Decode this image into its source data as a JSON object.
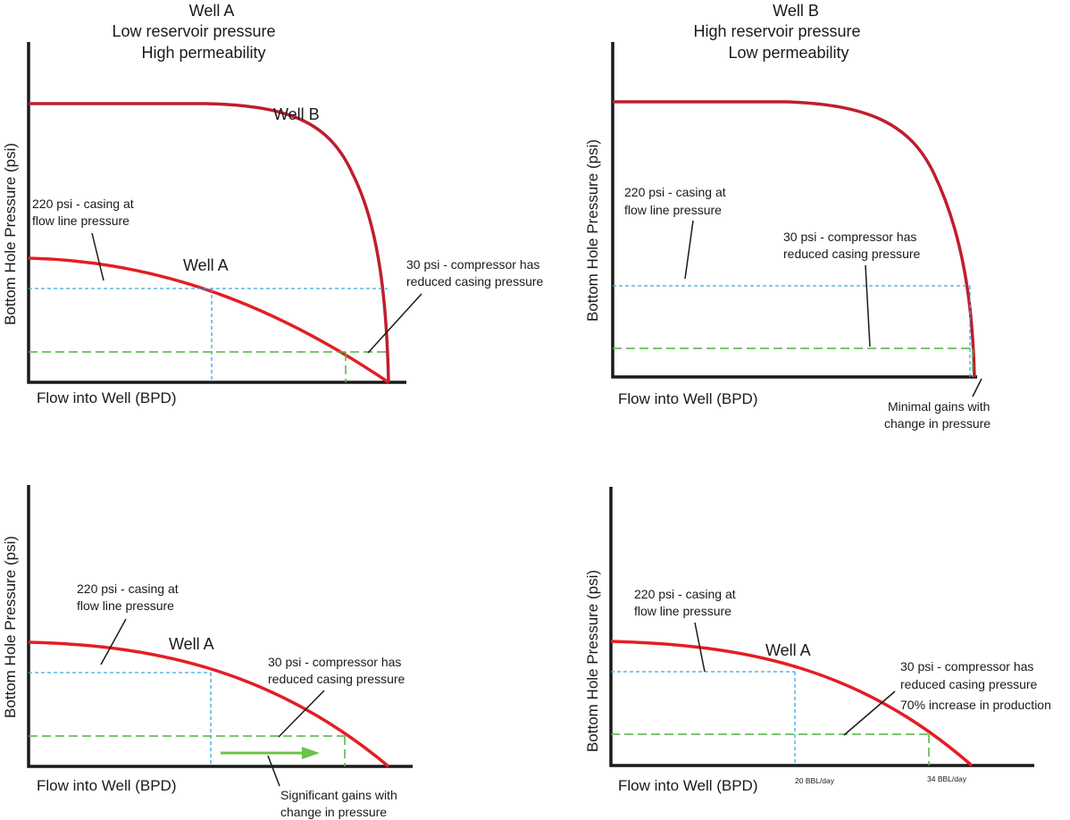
{
  "panels": {
    "top_left": {
      "title": [
        "Well A",
        "Low reservoir pressure",
        "High permeability"
      ],
      "ylabel": "Bottom Hole Pressure (psi)",
      "xlabel": "Flow into Well (BPD)",
      "curve_a_label": "Well A",
      "curve_b_label": "Well B",
      "note_220": [
        "220 psi - casing at",
        "flow line pressure"
      ],
      "note_30": [
        "30 psi - compressor has",
        "reduced casing pressure"
      ]
    },
    "top_right": {
      "title": [
        "Well B",
        "High reservoir pressure",
        "Low permeability"
      ],
      "ylabel": "Bottom Hole Pressure (psi)",
      "xlabel": "Flow into Well (BPD)",
      "note_220": [
        "220 psi - casing at",
        "flow line pressure"
      ],
      "note_30": [
        "30 psi - compressor has",
        "reduced casing pressure"
      ],
      "note_gain": [
        "Minimal gains with",
        "change in pressure"
      ]
    },
    "bottom_left": {
      "ylabel": "Bottom Hole Pressure (psi)",
      "xlabel": "Flow into Well (BPD)",
      "curve_a_label": "Well A",
      "note_220": [
        "220 psi - casing at",
        "flow line pressure"
      ],
      "note_30": [
        "30 psi - compressor has",
        "reduced casing pressure"
      ],
      "note_gain": [
        "Significant gains with",
        "change in pressure"
      ]
    },
    "bottom_right": {
      "ylabel": "Bottom Hole Pressure (psi)",
      "xlabel": "Flow into Well (BPD)",
      "curve_a_label": "Well A",
      "note_220": [
        "220 psi - casing at",
        "flow line pressure"
      ],
      "note_30": [
        "30 psi - compressor has",
        "reduced casing pressure"
      ],
      "note_increase": "70% increase in production",
      "tick_1": "20 BBL/day",
      "tick_2": "34 BBL/day"
    }
  },
  "colors": {
    "well_a_curve": "#e31e24",
    "well_b_curve": "#bf1e2e",
    "casing_line": "#3aa7d8",
    "compressor_line": "#4fb33f",
    "gain_arrow": "#6cc24a"
  }
}
